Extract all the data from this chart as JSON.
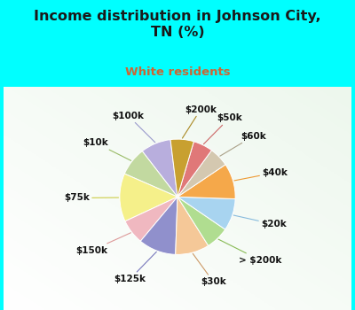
{
  "title": "Income distribution in Johnson City,\nTN (%)",
  "subtitle": "White residents",
  "title_color": "#1a1a1a",
  "subtitle_color": "#cc6633",
  "background_cyan": "#00ffff",
  "background_chart_tl": "#e8f5f0",
  "background_chart_br": "#c8e8d8",
  "labels": [
    "$100k",
    "$10k",
    "$75k",
    "$150k",
    "$125k",
    "$30k",
    "> $200k",
    "$20k",
    "$40k",
    "$60k",
    "$50k",
    "$200k"
  ],
  "values": [
    8.5,
    8.0,
    13.5,
    7.0,
    10.5,
    9.5,
    6.5,
    9.0,
    10.0,
    5.5,
    5.5,
    6.5
  ],
  "colors": [
    "#b8aedd",
    "#c2d9a0",
    "#f5f08a",
    "#f0b8c0",
    "#9090cc",
    "#f5c898",
    "#b0dd90",
    "#a8d4f0",
    "#f5a84a",
    "#d4c8b0",
    "#e07878",
    "#c8a030"
  ],
  "line_colors": [
    "#9999cc",
    "#99bb66",
    "#cccc44",
    "#dd9999",
    "#7777bb",
    "#cc9966",
    "#88bb55",
    "#88bbdd",
    "#ee9933",
    "#aaa088",
    "#cc6666",
    "#aa8822"
  ],
  "startangle": 97,
  "figsize": [
    4.0,
    3.5
  ],
  "dpi": 100
}
